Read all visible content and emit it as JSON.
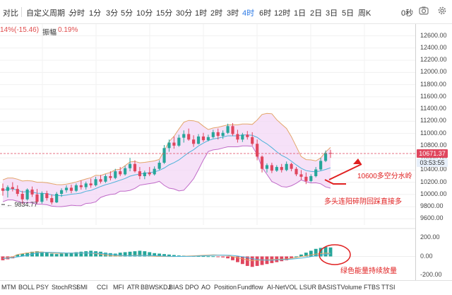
{
  "toolbar": {
    "compare": "对比",
    "custom_period": "自定义周期",
    "intervals": [
      "分时",
      "1分",
      "3分",
      "5分",
      "10分",
      "15分",
      "30分",
      "1时",
      "2时",
      "3时",
      "4时",
      "6时",
      "12时",
      "1日",
      "2日",
      "3日",
      "5日",
      "周K"
    ],
    "active_interval": "4时",
    "seconds_label": "0秒",
    "icons": [
      "chevron-down-icon",
      "camera-icon",
      "gear-icon"
    ]
  },
  "info": {
    "change": "14%(-15.46)",
    "amplitude_label": "振幅",
    "amplitude_value": "0.19%"
  },
  "price_axis": {
    "ticks": [
      "12600.00",
      "12400.00",
      "12200.00",
      "12000.00",
      "11800.00",
      "11600.00",
      "11400.00",
      "11200.00",
      "11000.00",
      "10800.00",
      "10600.00",
      "10400.00",
      "10200.00",
      "10000.00",
      "9800.00",
      "9600.00"
    ],
    "current_price": "10671.37",
    "countdown": "03:53:55"
  },
  "macd_axis": {
    "ticks": [
      "200.00",
      "0.00",
      "-200.00"
    ]
  },
  "annotations": {
    "low_marker": "9834.77",
    "watershed": "10600多空分水岭",
    "bull_note": "多头连阳碎阴回踩直接多",
    "volume_note": "绿色能量持续放量"
  },
  "indicator_tabs": [
    "MTM",
    "BOLL",
    "PSY",
    "StochRSI",
    "SMI",
    "CCI",
    "MFI",
    "ATR",
    "BBW",
    "SKDJ",
    "BIAS",
    "DPO",
    "AO",
    "Position",
    "Fundflow",
    "AI-NetVOL",
    "LSUR",
    "BASIS",
    "TVolume",
    "FTBS",
    "TTSI"
  ],
  "colors": {
    "up": "#26a69a",
    "down": "#e0465e",
    "band_fill": "#f3d7f5",
    "active": "#2e7be6",
    "annotation": "#e02020"
  },
  "chart_data": {
    "type": "candlestick",
    "interval": "4时",
    "ylim": [
      9500,
      12700
    ],
    "candles": [
      [
        10100,
        10180,
        9980,
        10060
      ],
      [
        10060,
        10150,
        9950,
        10120
      ],
      [
        10120,
        10200,
        10050,
        10090
      ],
      [
        10090,
        10150,
        9970,
        10010
      ],
      [
        10010,
        10060,
        9840,
        9920
      ],
      [
        9920,
        10100,
        9900,
        10080
      ],
      [
        10080,
        10130,
        9960,
        10000
      ],
      [
        10000,
        10090,
        9850,
        9880
      ],
      [
        9880,
        10050,
        9850,
        10020
      ],
      [
        10020,
        10060,
        9900,
        9940
      ],
      [
        9940,
        10000,
        9834.77,
        9870
      ],
      [
        9870,
        10040,
        9860,
        10010
      ],
      [
        10010,
        10100,
        9960,
        10070
      ],
      [
        10070,
        10150,
        10030,
        10110
      ],
      [
        10110,
        10160,
        10020,
        10060
      ],
      [
        10060,
        10180,
        10040,
        10150
      ],
      [
        10150,
        10230,
        10080,
        10120
      ],
      [
        10120,
        10210,
        10080,
        10180
      ],
      [
        10180,
        10260,
        10110,
        10150
      ],
      [
        10150,
        10290,
        10130,
        10250
      ],
      [
        10250,
        10320,
        10180,
        10210
      ],
      [
        10210,
        10330,
        10190,
        10300
      ],
      [
        10300,
        10380,
        10230,
        10270
      ],
      [
        10270,
        10420,
        10250,
        10380
      ],
      [
        10380,
        10450,
        10300,
        10330
      ],
      [
        10330,
        10470,
        10310,
        10430
      ],
      [
        10430,
        10600,
        10380,
        10500
      ],
      [
        10500,
        10560,
        10360,
        10380
      ],
      [
        10380,
        10450,
        10250,
        10300
      ],
      [
        10300,
        10390,
        10250,
        10360
      ],
      [
        10360,
        10450,
        10300,
        10330
      ],
      [
        10330,
        10460,
        10310,
        10420
      ],
      [
        10420,
        10560,
        10400,
        10520
      ],
      [
        10520,
        10810,
        10500,
        10760
      ],
      [
        10760,
        10900,
        10700,
        10850
      ],
      [
        10850,
        10950,
        10750,
        10800
      ],
      [
        10800,
        10980,
        10780,
        10930
      ],
      [
        10930,
        11050,
        10850,
        10990
      ],
      [
        10990,
        11080,
        10880,
        10900
      ],
      [
        10900,
        10970,
        10780,
        10830
      ],
      [
        10830,
        10990,
        10820,
        10950
      ],
      [
        10950,
        11010,
        10860,
        10890
      ],
      [
        10890,
        10980,
        10870,
        10940
      ],
      [
        10940,
        11060,
        10920,
        11020
      ],
      [
        11020,
        11080,
        10900,
        10960
      ],
      [
        10960,
        11050,
        10910,
        11010
      ],
      [
        11010,
        11160,
        10990,
        11120
      ],
      [
        11120,
        11170,
        10960,
        10990
      ],
      [
        10990,
        11060,
        10850,
        10900
      ],
      [
        10900,
        11010,
        10860,
        10980
      ],
      [
        10980,
        11040,
        10900,
        10940
      ],
      [
        10940,
        11020,
        10800,
        10830
      ],
      [
        10830,
        10900,
        10560,
        10620
      ],
      [
        10620,
        10640,
        10360,
        10420
      ],
      [
        10420,
        10510,
        10360,
        10480
      ],
      [
        10480,
        10520,
        10350,
        10390
      ],
      [
        10390,
        10480,
        10370,
        10450
      ],
      [
        10450,
        10500,
        10360,
        10400
      ],
      [
        10400,
        10540,
        10380,
        10500
      ],
      [
        10500,
        10520,
        10380,
        10420
      ],
      [
        10420,
        10450,
        10300,
        10330
      ],
      [
        10330,
        10400,
        10240,
        10290
      ],
      [
        10290,
        10360,
        10170,
        10220
      ],
      [
        10220,
        10330,
        10200,
        10300
      ],
      [
        10300,
        10450,
        10280,
        10410
      ],
      [
        10410,
        10600,
        10390,
        10550
      ],
      [
        10550,
        10720,
        10530,
        10680
      ],
      [
        10680,
        10730,
        10600,
        10671.37
      ]
    ],
    "macd_hist": [
      -40,
      -30,
      -20,
      20,
      30,
      40,
      50,
      55,
      50,
      40,
      30,
      25,
      30,
      35,
      40,
      45,
      50,
      55,
      60,
      55,
      50,
      40,
      35,
      30,
      40,
      45,
      50,
      55,
      60,
      55,
      45,
      35,
      30,
      25,
      20,
      15,
      10,
      8,
      6,
      5,
      4,
      3,
      2,
      2,
      -5,
      -10,
      -20,
      -40,
      -60,
      -80,
      -100,
      -110,
      -100,
      -90,
      -80,
      -70,
      -60,
      -50,
      -40,
      -20,
      0,
      20,
      40,
      60,
      80,
      90,
      100,
      95
    ],
    "macd_ylim": [
      -250,
      250
    ]
  }
}
